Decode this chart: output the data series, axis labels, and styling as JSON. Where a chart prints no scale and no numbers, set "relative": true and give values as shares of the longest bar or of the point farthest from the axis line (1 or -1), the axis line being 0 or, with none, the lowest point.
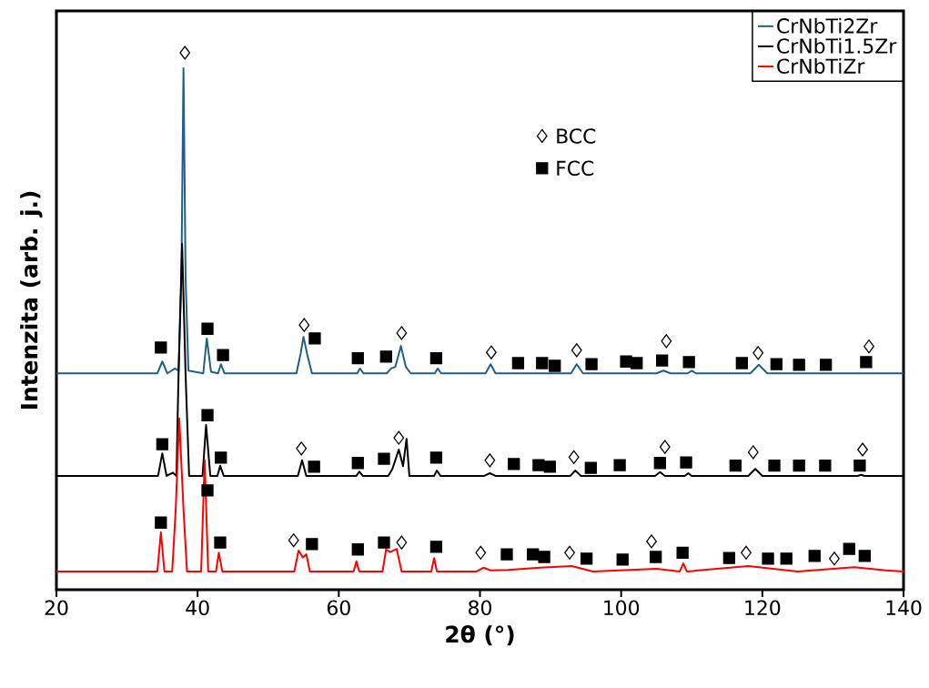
{
  "chart_data": {
    "type": "line",
    "relative": true,
    "xlabel": "2θ (°)",
    "ylabel": "Intenzita (arb. j.)",
    "xlim": [
      20,
      140
    ],
    "xticks": [
      20,
      40,
      60,
      80,
      100,
      120,
      140
    ],
    "legend": "top right",
    "marker": "none",
    "line_style": "solid",
    "grid": false,
    "series": [
      {
        "name": "CrNbTi2Zr",
        "color": "#215f86",
        "x": [
          20,
          34.3,
          35,
          35.7,
          36.8,
          37.3,
          37.7,
          38.0,
          38.3,
          38.7,
          40.8,
          41.3,
          41.9,
          42.9,
          43.3,
          43.8,
          54.0,
          54.6,
          55.0,
          55.5,
          56.2,
          62.6,
          63,
          63.5,
          66.8,
          67.4,
          68.0,
          68.8,
          69.5,
          70.2,
          73.6,
          74.0,
          74.5,
          80.8,
          81.5,
          82.2,
          92.9,
          93.7,
          94.6,
          105,
          106,
          107,
          109.4,
          110,
          110.6,
          118.3,
          119.5,
          120.7,
          140
        ],
        "values": [
          0.403,
          0.403,
          0.425,
          0.403,
          0.412,
          0.408,
          0.58,
          0.971,
          0.58,
          0.408,
          0.403,
          0.468,
          0.406,
          0.403,
          0.42,
          0.403,
          0.403,
          0.44,
          0.471,
          0.44,
          0.403,
          0.403,
          0.412,
          0.403,
          0.403,
          0.412,
          0.415,
          0.454,
          0.415,
          0.403,
          0.403,
          0.412,
          0.403,
          0.403,
          0.42,
          0.403,
          0.403,
          0.42,
          0.403,
          0.403,
          0.408,
          0.403,
          0.403,
          0.408,
          0.403,
          0.403,
          0.419,
          0.403,
          0.403
        ]
      },
      {
        "name": "CrNbTi1.5Zr",
        "color": "#000000",
        "x": [
          20,
          34.4,
          35,
          35.6,
          36.5,
          37.0,
          37.3,
          37.8,
          38.3,
          38.8,
          40.7,
          41.2,
          41.8,
          42.8,
          43.2,
          43.7,
          54.2,
          54.8,
          55.4,
          62.5,
          62.9,
          63.4,
          67.0,
          67.6,
          68.5,
          69.1,
          69.6,
          70.0,
          73.5,
          73.9,
          74.4,
          80.6,
          81.4,
          82.2,
          92.8,
          93.5,
          94.3,
          104.8,
          105.5,
          106.2,
          109.0,
          109.5,
          110.0,
          118.0,
          119,
          120,
          133.5,
          134,
          134.5,
          140
        ],
        "values": [
          0.212,
          0.212,
          0.254,
          0.212,
          0.218,
          0.212,
          0.4,
          0.644,
          0.4,
          0.212,
          0.212,
          0.307,
          0.212,
          0.212,
          0.231,
          0.212,
          0.212,
          0.241,
          0.212,
          0.212,
          0.22,
          0.212,
          0.212,
          0.225,
          0.261,
          0.23,
          0.281,
          0.212,
          0.212,
          0.222,
          0.212,
          0.212,
          0.217,
          0.212,
          0.212,
          0.222,
          0.212,
          0.212,
          0.219,
          0.212,
          0.212,
          0.217,
          0.212,
          0.212,
          0.225,
          0.212,
          0.212,
          0.214,
          0.212,
          0.212
        ]
      },
      {
        "name": "CrNbTiZr",
        "color": "#ff0000",
        "x": [
          20,
          34.3,
          34.8,
          35.3,
          36.4,
          36.9,
          37.4,
          38.0,
          38.5,
          40.5,
          41.0,
          41.5,
          42.6,
          43.0,
          43.5,
          53.7,
          54.3,
          54.9,
          55.4,
          55.9,
          62.1,
          62.5,
          62.9,
          66.2,
          66.7,
          67.3,
          68.2,
          68.9,
          73.1,
          73.5,
          73.9,
          79.5,
          80.5,
          81.5,
          84,
          88.5,
          93,
          96,
          105,
          108.3,
          108.8,
          109.3,
          118,
          125,
          133,
          137.5,
          140
        ],
        "values": [
          0.034,
          0.034,
          0.107,
          0.034,
          0.034,
          0.15,
          0.319,
          0.15,
          0.034,
          0.034,
          0.242,
          0.034,
          0.034,
          0.069,
          0.034,
          0.034,
          0.073,
          0.06,
          0.066,
          0.034,
          0.034,
          0.053,
          0.034,
          0.034,
          0.075,
          0.07,
          0.076,
          0.034,
          0.034,
          0.059,
          0.034,
          0.034,
          0.041,
          0.036,
          0.037,
          0.041,
          0.044,
          0.034,
          0.039,
          0.034,
          0.049,
          0.034,
          0.044,
          0.034,
          0.042,
          0.036,
          0.034
        ]
      },
      {
        "name": "BCC",
        "type": "scatter",
        "marker": "diamond",
        "color": "#000000",
        "x": [
          38.2,
          55.1,
          68.9,
          81.6,
          93.7,
          106.4,
          119.4,
          135.1,
          54.7,
          68.5,
          81.4,
          93.3,
          106.2,
          118.7,
          134.2,
          53.6,
          68.9,
          80.1,
          92.7,
          104.3,
          117.7,
          130.2
        ],
        "values": [
          1.0,
          0.493,
          0.478,
          0.442,
          0.446,
          0.463,
          0.441,
          0.453,
          0.263,
          0.283,
          0.241,
          0.247,
          0.266,
          0.256,
          0.261,
          0.092,
          0.088,
          0.069,
          0.069,
          0.09,
          0.069,
          0.058
        ]
      },
      {
        "name": "FCC",
        "type": "scatter",
        "marker": "square",
        "color": "#000000",
        "x": [
          34.8,
          41.4,
          43.6,
          56.6,
          62.7,
          66.7,
          73.8,
          85.4,
          88.8,
          90.6,
          95.8,
          100.7,
          102.2,
          105.8,
          109.6,
          117.1,
          122.0,
          125.2,
          129.0,
          134.7,
          35.0,
          41.4,
          43.3,
          56.5,
          62.7,
          66.4,
          73.8,
          84.8,
          88.3,
          89.9,
          95.7,
          99.8,
          105.5,
          109.2,
          116.2,
          121.7,
          125.2,
          128.9,
          133.8,
          34.8,
          41.4,
          43.2,
          56.2,
          62.7,
          66.4,
          73.8,
          83.8,
          87.5,
          89.1,
          95.1,
          100.2,
          104.9,
          108.7,
          115.3,
          120.8,
          123.4,
          127.4,
          132.3,
          134.5
        ],
        "values": [
          0.451,
          0.486,
          0.437,
          0.468,
          0.431,
          0.434,
          0.431,
          0.422,
          0.422,
          0.417,
          0.42,
          0.425,
          0.422,
          0.427,
          0.424,
          0.422,
          0.42,
          0.419,
          0.419,
          0.424,
          0.271,
          0.325,
          0.246,
          0.229,
          0.236,
          0.244,
          0.246,
          0.234,
          0.232,
          0.229,
          0.227,
          0.232,
          0.236,
          0.237,
          0.231,
          0.231,
          0.231,
          0.231,
          0.231,
          0.125,
          0.185,
          0.088,
          0.085,
          0.075,
          0.088,
          0.08,
          0.066,
          0.066,
          0.061,
          0.058,
          0.056,
          0.061,
          0.069,
          0.059,
          0.058,
          0.058,
          0.063,
          0.076,
          0.063
        ]
      }
    ]
  }
}
